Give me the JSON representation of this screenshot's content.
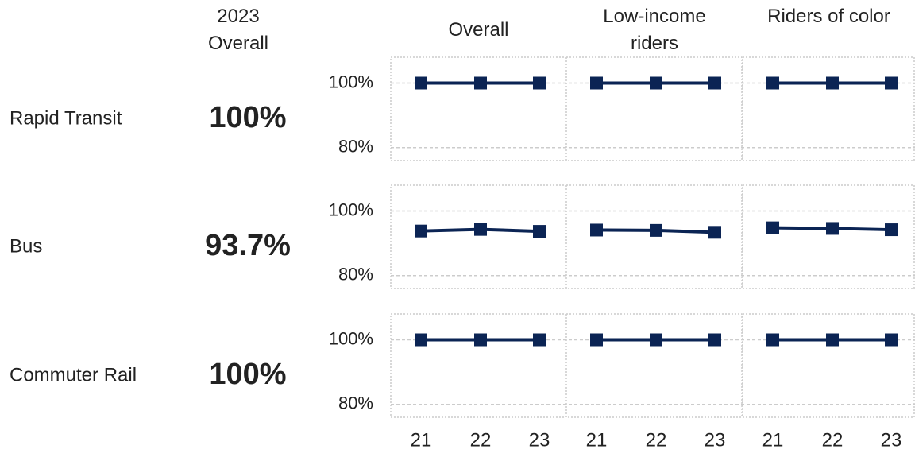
{
  "chart_data": {
    "type": "line",
    "summary_title": "2023 Overall",
    "columns": [
      "Overall",
      "Low-income riders",
      "Riders of color"
    ],
    "x": [
      "21",
      "22",
      "23"
    ],
    "ylim": [
      76,
      108
    ],
    "yticks": [
      {
        "value": 80,
        "label": "80%"
      },
      {
        "value": 100,
        "label": "100%"
      }
    ],
    "grid": true,
    "color": "#0b2454",
    "rows": [
      {
        "name": "Rapid Transit",
        "summary": 100,
        "summary_label": "100%",
        "panels": [
          [
            100,
            100,
            100
          ],
          [
            100,
            100,
            100
          ],
          [
            100,
            100,
            100
          ]
        ]
      },
      {
        "name": "Bus",
        "summary": 93.7,
        "summary_label": "93.7%",
        "panels": [
          [
            93.8,
            94.3,
            93.7
          ],
          [
            94.1,
            94.0,
            93.4
          ],
          [
            94.8,
            94.6,
            94.2
          ]
        ]
      },
      {
        "name": "Commuter Rail",
        "summary": 100,
        "summary_label": "100%",
        "panels": [
          [
            100,
            100,
            100
          ],
          [
            100,
            100,
            100
          ],
          [
            100,
            100,
            100
          ]
        ]
      }
    ]
  }
}
